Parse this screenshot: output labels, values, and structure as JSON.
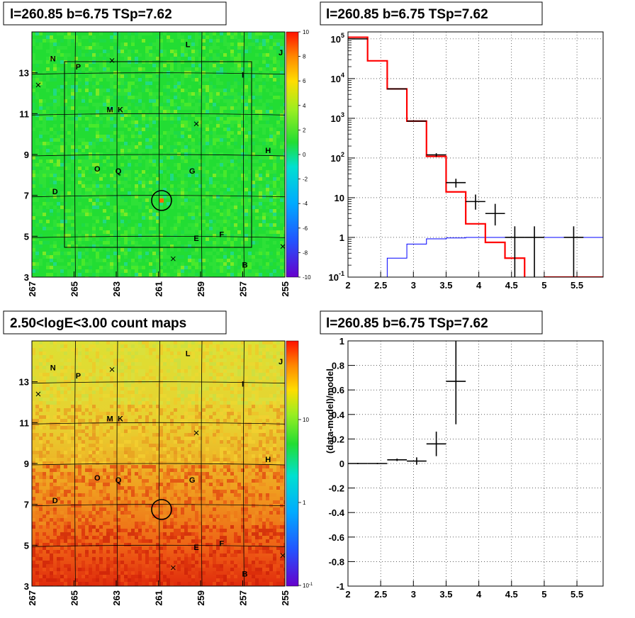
{
  "panels": {
    "resid_map_title": "l=260.85 b=6.75 TSp=7.62",
    "spectrum_title": "l=260.85 b=6.75 TSp=7.62",
    "count_map_title": "2.50<logE<3.00 count maps",
    "ratio_title": "l=260.85 b=6.75 TSp=7.62"
  },
  "colors": {
    "data": "#000000",
    "model": "#ff0000",
    "source_model": "#0000ff",
    "resid_bg": "#22dd33",
    "count_top": "#e8e040",
    "count_bottom": "#e83010"
  },
  "chart_data": [
    {
      "type": "heatmap",
      "title": "l=260.85 b=6.75 TSp=7.62",
      "x_ticks": [
        "267",
        "265",
        "263",
        "261",
        "259",
        "257",
        "255"
      ],
      "y_ticks": [
        "3",
        "5",
        "7",
        "9",
        "11",
        "13"
      ],
      "xlim": [
        267,
        255
      ],
      "ylim": [
        3,
        15
      ],
      "colorbar_ticks": [
        "10",
        "8",
        "6",
        "4",
        "2",
        "0",
        "-2",
        "-4",
        "-6",
        "-8",
        "-10"
      ],
      "colorbar_range": [
        -10,
        10
      ],
      "sources": [
        {
          "label": "L",
          "l": 259.6,
          "b": 14.4
        },
        {
          "label": "J",
          "l": 255.2,
          "b": 14.0
        },
        {
          "label": "N",
          "l": 266.0,
          "b": 13.7
        },
        {
          "label": "P",
          "l": 264.8,
          "b": 13.3
        },
        {
          "label": "I",
          "l": 257.0,
          "b": 12.9
        },
        {
          "label": "M",
          "l": 263.3,
          "b": 11.2
        },
        {
          "label": "K",
          "l": 262.8,
          "b": 11.2
        },
        {
          "label": "H",
          "l": 255.8,
          "b": 9.2
        },
        {
          "label": "O",
          "l": 263.9,
          "b": 8.3
        },
        {
          "label": "Q",
          "l": 262.9,
          "b": 8.2
        },
        {
          "label": "G",
          "l": 259.4,
          "b": 8.2
        },
        {
          "label": "D",
          "l": 265.9,
          "b": 7.2
        },
        {
          "label": "E",
          "l": 259.2,
          "b": 4.9
        },
        {
          "label": "F",
          "l": 258.0,
          "b": 5.1
        },
        {
          "label": "B",
          "l": 256.9,
          "b": 3.6
        }
      ],
      "crosses": [
        {
          "l": 263.2,
          "b": 13.6
        },
        {
          "l": 266.7,
          "b": 12.4
        },
        {
          "l": 259.2,
          "b": 10.5
        },
        {
          "l": 260.3,
          "b": 3.9
        },
        {
          "l": 255.1,
          "b": 4.5
        }
      ],
      "circle": {
        "l": 260.85,
        "b": 6.75
      }
    },
    {
      "type": "line",
      "title": "l=260.85 b=6.75 TSp=7.62",
      "yscale": "log",
      "xlim": [
        2,
        5.9
      ],
      "ylim": [
        0.1,
        150000
      ],
      "x_ticks": [
        "2",
        "2.5",
        "3",
        "3.5",
        "4",
        "4.5",
        "5",
        "5.5"
      ],
      "y_ticks": [
        "10^-1",
        "1",
        "10",
        "10^2",
        "10^3",
        "10^4",
        "10^5"
      ],
      "grid": true,
      "bin_edges": [
        2.0,
        2.3,
        2.6,
        2.9,
        3.2,
        3.5,
        3.8,
        4.1,
        4.4,
        4.7,
        5.0,
        5.3,
        5.6,
        5.9
      ],
      "series": [
        {
          "role": "data",
          "style": "points",
          "points": [
            {
              "x": 2.15,
              "y": 100000,
              "xerr": 0.15
            },
            {
              "x": 2.75,
              "y": 5500,
              "xerr": 0.15
            },
            {
              "x": 3.05,
              "y": 850,
              "xerr": 0.15
            },
            {
              "x": 3.35,
              "y": 120,
              "xerr": 0.15,
              "yerr_lo": 12,
              "yerr_hi": 12
            },
            {
              "x": 3.65,
              "y": 24,
              "xerr": 0.15,
              "yerr_lo": 6,
              "yerr_hi": 6
            },
            {
              "x": 3.95,
              "y": 8,
              "xerr": 0.15,
              "yerr_lo": 3,
              "yerr_hi": 4
            },
            {
              "x": 4.25,
              "y": 4,
              "xerr": 0.15,
              "yerr_lo": 2,
              "yerr_hi": 3
            },
            {
              "x": 4.55,
              "y": 1,
              "xerr": 0.15,
              "yerr_lo": 0.95,
              "yerr_hi": 0.9
            },
            {
              "x": 4.85,
              "y": 1,
              "xerr": 0.15,
              "yerr_lo": 0.95,
              "yerr_hi": 0.9
            },
            {
              "x": 5.45,
              "y": 1,
              "xerr": 0.15,
              "yerr_lo": 0.95,
              "yerr_hi": 0.9
            }
          ]
        },
        {
          "role": "model",
          "style": "step",
          "values": [
            110000,
            28000,
            5500,
            850,
            110,
            14,
            2.2,
            0.75,
            0.3,
            0.09,
            0.1,
            0.1,
            0.1
          ]
        },
        {
          "role": "source_model",
          "style": "step",
          "values": [
            0.05,
            0.08,
            0.3,
            0.68,
            0.92,
            0.97,
            1.0,
            1.0,
            1.0,
            1.0,
            1.0,
            1.0,
            1.0
          ]
        }
      ]
    },
    {
      "type": "heatmap",
      "title": "2.50<logE<3.00 count maps",
      "x_ticks": [
        "267",
        "265",
        "263",
        "261",
        "259",
        "257",
        "255"
      ],
      "y_ticks": [
        "3",
        "5",
        "7",
        "9",
        "11",
        "13"
      ],
      "xlim": [
        267,
        255
      ],
      "ylim": [
        3,
        15
      ],
      "colorbar_ticks": [
        "10",
        "1",
        "10^-1"
      ],
      "colorbar_scale": "log"
    },
    {
      "type": "scatter",
      "title": "l=260.85 b=6.75 TSp=7.62",
      "ylabel": "(data-model)/model",
      "xlim": [
        2,
        5.9
      ],
      "ylim": [
        -1,
        1
      ],
      "x_ticks": [
        "2",
        "2.5",
        "3",
        "3.5",
        "4",
        "4.5",
        "5",
        "5.5"
      ],
      "y_ticks": [
        "1",
        "0.8",
        "0.6",
        "0.4",
        "0.2",
        "0",
        "-0.2",
        "-0.4",
        "-0.6",
        "-0.8",
        "-1"
      ],
      "grid": true,
      "points": [
        {
          "x": 2.15,
          "y": 0.0,
          "xerr": 0.15,
          "yerr": 0.005
        },
        {
          "x": 2.45,
          "y": 0.0,
          "xerr": 0.15,
          "yerr": 0.005
        },
        {
          "x": 2.75,
          "y": 0.03,
          "xerr": 0.15,
          "yerr": 0.01
        },
        {
          "x": 3.05,
          "y": 0.02,
          "xerr": 0.15,
          "yerr": 0.03
        },
        {
          "x": 3.35,
          "y": 0.16,
          "xerr": 0.15,
          "yerr": 0.1
        },
        {
          "x": 3.65,
          "y": 0.67,
          "xerr": 0.15,
          "yerr": 0.35
        }
      ]
    }
  ]
}
